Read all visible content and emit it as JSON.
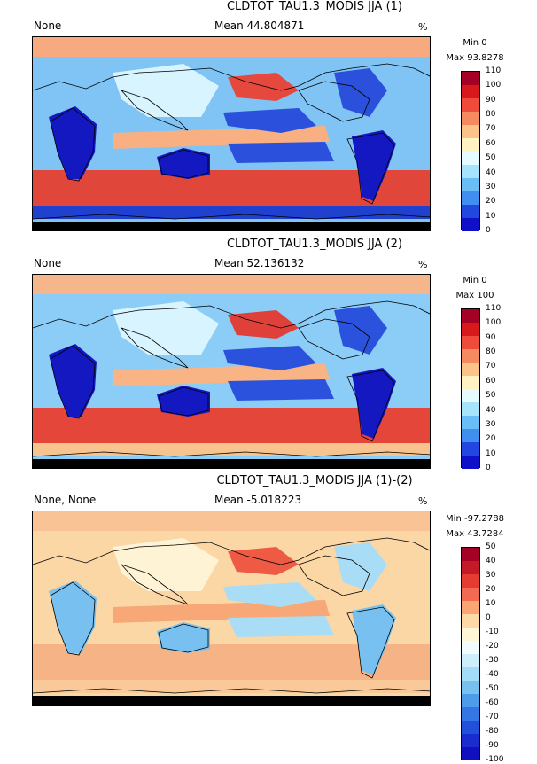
{
  "panels": [
    {
      "title": "CLDTOT_TAU1.3_MODIS JJA (1)",
      "label": "None",
      "mean": "Mean 44.804871",
      "units": "%",
      "min": "Min 0",
      "max": "Max 93.8278",
      "ticks": [
        "110",
        "100",
        "90",
        "80",
        "70",
        "60",
        "50",
        "40",
        "30",
        "20",
        "10",
        "0"
      ],
      "colors": [
        "#a50026",
        "#d7191c",
        "#ef4b3a",
        "#f58a60",
        "#fbc28a",
        "#fff3c4",
        "#e6fbff",
        "#a6e4fb",
        "#69bff5",
        "#3f8ef0",
        "#2247e0",
        "#1010c8"
      ],
      "map": {
        "base": "#7fc4f5",
        "north": "#f7aa80",
        "south_band": "#e0463a",
        "south_edge": "#2040d0",
        "blue": "#2a50dc",
        "deep": "#1418c0",
        "red": "#e5483c",
        "orange": "#f8b082",
        "pale": "#d8f4ff",
        "land_mask": "#000000"
      }
    },
    {
      "title": "CLDTOT_TAU1.3_MODIS JJA (2)",
      "label": "None",
      "mean": "Mean 52.136132",
      "units": "%",
      "min": "Min 0",
      "max": "Max 100",
      "ticks": [
        "110",
        "100",
        "90",
        "80",
        "70",
        "60",
        "50",
        "40",
        "30",
        "20",
        "10",
        "0"
      ],
      "colors": [
        "#a50026",
        "#d7191c",
        "#ef4b3a",
        "#f58a60",
        "#fbc28a",
        "#fff3c4",
        "#e6fbff",
        "#a6e4fb",
        "#69bff5",
        "#3f8ef0",
        "#2247e0",
        "#1010c8"
      ],
      "map": {
        "base": "#8ccdf7",
        "north": "#f5b68c",
        "south_band": "#e5463a",
        "south_edge": "#f7c490",
        "blue": "#2a52dc",
        "deep": "#1418c0",
        "red": "#e0403a",
        "orange": "#f8b484",
        "pale": "#d8f4ff",
        "land_mask": "#000000"
      }
    },
    {
      "title": "CLDTOT_TAU1.3_MODIS JJA (1)-(2)",
      "label": "None, None",
      "mean": "Mean -5.018223",
      "units": "%",
      "min": "Min -97.2788",
      "max": "Max 43.7284",
      "ticks": [
        "50",
        "40",
        "30",
        "20",
        "10",
        "0",
        "-10",
        "-20",
        "-30",
        "-40",
        "-50",
        "-60",
        "-70",
        "-80",
        "-90",
        "-100"
      ],
      "colors": [
        "#a50026",
        "#c41a28",
        "#e63b30",
        "#f36a52",
        "#f9a574",
        "#fcd9a6",
        "#fff6d8",
        "#f2fbff",
        "#cdeffb",
        "#a2dcf6",
        "#77c1f0",
        "#4d9cea",
        "#3376e4",
        "#2350da",
        "#1a2cce",
        "#1010c0"
      ],
      "map": {
        "base": "#fcd7a6",
        "north": "#f9c395",
        "south_band": "#f6b385",
        "south_edge": "#f9c99a",
        "blue": "#a9dcf5",
        "deep": "#77c0ef",
        "red": "#ee5a44",
        "orange": "#f7a876",
        "pale": "#fff3d6",
        "land_mask": "#000000"
      }
    }
  ]
}
